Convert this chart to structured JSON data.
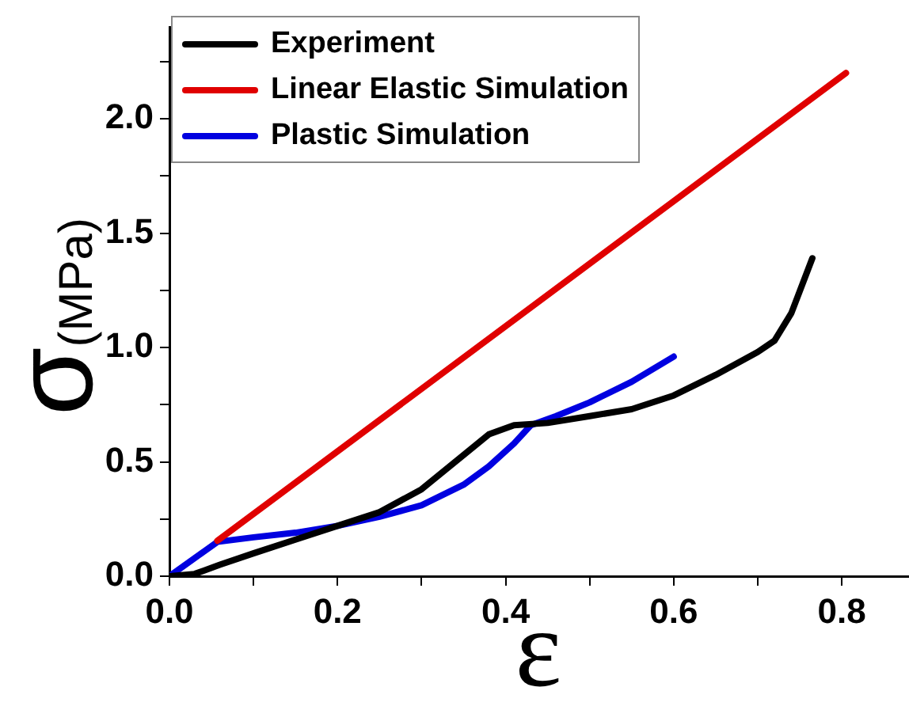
{
  "chart_data": {
    "type": "line",
    "xlabel": "ε",
    "ylabel": "σ(MPa)",
    "xlim": [
      0,
      0.88
    ],
    "ylim": [
      0,
      2.4
    ],
    "xticks": [
      {
        "value": 0,
        "label": "0.0"
      },
      {
        "value": 0.1,
        "label": null
      },
      0.2,
      {
        "value": 0.3,
        "label": null
      },
      0.4,
      {
        "value": 0.5,
        "label": null
      },
      0.6,
      {
        "value": 0.7,
        "label": null
      },
      0.8
    ],
    "yticks": [
      {
        "value": 0,
        "label": "0.0"
      },
      {
        "value": 0.25,
        "label": null
      },
      0.5,
      {
        "value": 0.75,
        "label": null
      },
      {
        "value": 1,
        "label": "1.0"
      },
      {
        "value": 1.25,
        "label": null
      },
      1.5,
      {
        "value": 1.75,
        "label": null
      },
      {
        "value": 2,
        "label": "2.0"
      },
      {
        "value": 2.25,
        "label": null
      }
    ],
    "grid": false,
    "legend": "top left",
    "marker": "none",
    "line_style": "solid",
    "series": [
      {
        "name": "Experiment",
        "color": "#000000",
        "x": [
          0,
          0.03,
          0.06,
          0.1,
          0.15,
          0.2,
          0.25,
          0.3,
          0.35,
          0.38,
          0.41,
          0.45,
          0.5,
          0.55,
          0.6,
          0.65,
          0.7,
          0.72,
          0.74,
          0.765
        ],
        "values": [
          0,
          0.01,
          0.05,
          0.1,
          0.16,
          0.22,
          0.28,
          0.38,
          0.53,
          0.62,
          0.66,
          0.67,
          0.7,
          0.73,
          0.79,
          0.88,
          0.98,
          1.03,
          1.15,
          1.39
        ]
      },
      {
        "name": "Linear Elastic Simulation",
        "color": "#e00000",
        "x": [
          0.057,
          0.805
        ],
        "values": [
          0.155,
          2.2
        ]
      },
      {
        "name": "Plastic Simulation",
        "color": "#0000e0",
        "x": [
          0,
          0.057,
          0.1,
          0.15,
          0.2,
          0.25,
          0.3,
          0.35,
          0.38,
          0.41,
          0.43,
          0.46,
          0.5,
          0.55,
          0.6
        ],
        "values": [
          0,
          0.15,
          0.17,
          0.19,
          0.22,
          0.26,
          0.31,
          0.4,
          0.48,
          0.58,
          0.66,
          0.7,
          0.76,
          0.85,
          0.96
        ]
      }
    ]
  }
}
